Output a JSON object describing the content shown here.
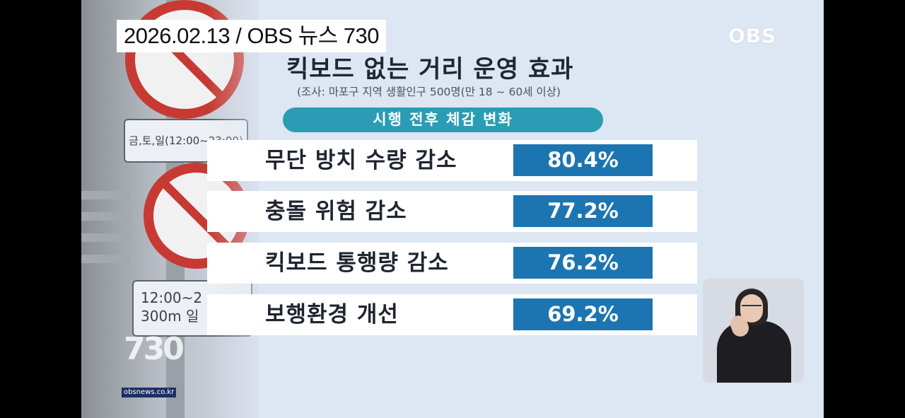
{
  "broadcast": {
    "date_program": "2026.02.13 / OBS 뉴스 730",
    "channel_logo": "OBS",
    "website": "obsnews.co.kr"
  },
  "background_signs": {
    "plate_top": "금,토,일(12:00~23:00)",
    "plate_bottom_line1": "12:00~2",
    "plate_bottom_line2": "300m 일"
  },
  "graphic": {
    "title": "킥보드 없는 거리 운영 효과",
    "subtitle": "(조사: 마포구 지역 생활인구 500명(만 18 ~ 60세 이상)",
    "section_label": "시행 전후 체감 변화",
    "rows": [
      {
        "label": "무단 방치 수량 감소",
        "value": "80.4%"
      },
      {
        "label": "충돌 위험 감소",
        "value": "77.2%"
      },
      {
        "label": "킥보드 통행량 감소",
        "value": "76.2%"
      },
      {
        "label": "보행환경 개선",
        "value": "69.2%"
      }
    ]
  },
  "colors": {
    "pill": "#2a9db4",
    "value_box": "#1c75b0",
    "background": "#dde6f3"
  }
}
